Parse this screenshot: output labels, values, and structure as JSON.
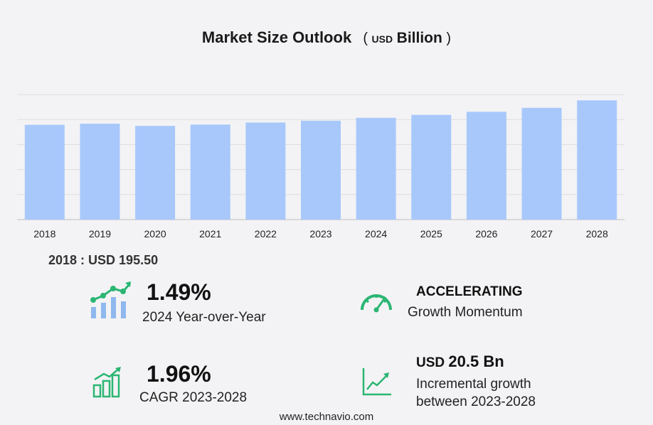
{
  "header": {
    "title": "Market Size Outlook",
    "unit_open": "(",
    "unit_prefix": "USD",
    "unit_word": "Billion",
    "unit_close": ")"
  },
  "chart_data": {
    "type": "bar",
    "categories": [
      "2018",
      "2019",
      "2020",
      "2021",
      "2022",
      "2023",
      "2024",
      "2025",
      "2026",
      "2027",
      "2028"
    ],
    "values": [
      195.5,
      196.6,
      194.4,
      195.7,
      197.8,
      199.6,
      202.5,
      205.5,
      208.6,
      212.6,
      220.1
    ],
    "bar_color": "#a8c8fb",
    "grid": true,
    "y_tick_labels_shown": false
  },
  "base_year": {
    "label": "2018 : USD  195.50"
  },
  "kpis": {
    "yoy": {
      "value": "1.49%",
      "label": "2024 Year-over-Year",
      "icon": "growth-chart-icon"
    },
    "momentum": {
      "value": "ACCELERATING",
      "label": "Growth Momentum",
      "icon": "speedometer-icon"
    },
    "cagr": {
      "value": "1.96%",
      "label": "CAGR 2023-2028",
      "icon": "bar-growth-icon"
    },
    "incremental": {
      "prefix": "USD",
      "value": "20.5 Bn",
      "label_line1": "Incremental growth",
      "label_line2": "between 2023-2028",
      "icon": "line-growth-icon"
    }
  },
  "colors": {
    "accent_green": "#2bb673",
    "icon_blue": "#8fb8ee"
  },
  "footer": {
    "url": "www.technavio.com"
  }
}
